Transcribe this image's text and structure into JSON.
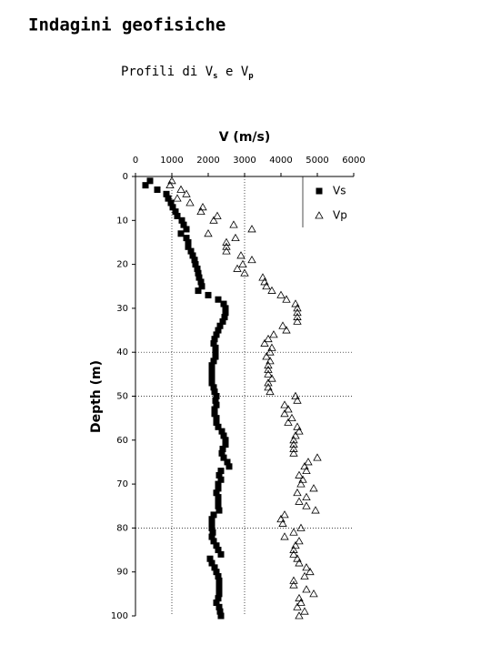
{
  "chart_data": {
    "type": "scatter",
    "title": "Indagini geofisiche",
    "subtitle": [
      "Profili di V",
      "s",
      " e V",
      "p"
    ],
    "xlabel": "V (m/s)",
    "ylabel": "Depth (m)",
    "xlim": [
      0,
      6000
    ],
    "xticks": [
      0,
      1000,
      2000,
      3000,
      4000,
      5000,
      6000
    ],
    "ylim": [
      0,
      100
    ],
    "yticks": [
      0,
      10,
      20,
      30,
      40,
      50,
      60,
      70,
      80,
      90,
      100
    ],
    "xgrid": [
      1000,
      3000
    ],
    "ygrid": [
      40,
      50,
      80
    ],
    "series": [
      {
        "name": "Vs",
        "color": "#000000",
        "marker": "square",
        "x": [
          400,
          275,
          600,
          850,
          900,
          975,
          1025,
          1100,
          1150,
          1275,
          1325,
          1400,
          1250,
          1400,
          1450,
          1450,
          1525,
          1575,
          1625,
          1650,
          1700,
          1725,
          1750,
          1800,
          1825,
          1725,
          2000,
          2275,
          2425,
          2475,
          2475,
          2450,
          2400,
          2325,
          2275,
          2225,
          2175,
          2150,
          2200,
          2200,
          2200,
          2150,
          2100,
          2100,
          2100,
          2100,
          2100,
          2150,
          2175,
          2225,
          2200,
          2225,
          2175,
          2175,
          2225,
          2225,
          2275,
          2375,
          2425,
          2475,
          2475,
          2400,
          2375,
          2425,
          2525,
          2575,
          2350,
          2300,
          2350,
          2275,
          2275,
          2225,
          2275,
          2275,
          2275,
          2300,
          2150,
          2100,
          2100,
          2100,
          2125,
          2100,
          2150,
          2225,
          2275,
          2350,
          2050,
          2100,
          2175,
          2225,
          2275,
          2300,
          2300,
          2300,
          2300,
          2275,
          2225,
          2300,
          2325,
          2350
        ],
        "y": [
          1,
          2,
          3,
          4,
          5,
          6,
          7,
          8,
          9,
          10,
          11,
          12,
          13,
          14,
          15,
          16,
          17,
          18,
          19,
          20,
          21,
          22,
          23,
          24,
          25,
          26,
          27,
          28,
          29,
          30,
          31,
          32,
          33,
          34,
          35,
          36,
          37,
          38,
          39,
          40,
          41,
          42,
          43,
          44,
          45,
          46,
          47,
          48,
          49,
          50,
          51,
          52,
          53,
          54,
          55,
          56,
          57,
          58,
          59,
          60,
          61,
          62,
          63,
          64,
          65,
          66,
          67,
          68,
          69,
          70,
          71,
          72,
          73,
          74,
          75,
          76,
          77,
          78,
          79,
          80,
          81,
          82,
          83,
          84,
          85,
          86,
          87,
          88,
          89,
          90,
          91,
          92,
          93,
          94,
          95,
          96,
          97,
          98,
          99,
          100
        ]
      },
      {
        "name": "Vp",
        "color": "#000000",
        "marker": "triangle",
        "x": [
          1000,
          950,
          1250,
          1400,
          1150,
          1500,
          1850,
          1800,
          2250,
          2150,
          2700,
          3200,
          2000,
          2750,
          2500,
          2500,
          2500,
          2900,
          3200,
          2950,
          2800,
          3000,
          3500,
          3550,
          3600,
          3750,
          4000,
          4150,
          4400,
          4450,
          4450,
          4450,
          4450,
          4050,
          4150,
          3800,
          3650,
          3550,
          3750,
          3700,
          3600,
          3700,
          3650,
          3650,
          3650,
          3750,
          3650,
          3650,
          3700,
          4400,
          4450,
          4100,
          4200,
          4100,
          4300,
          4200,
          4450,
          4500,
          4400,
          4350,
          4350,
          4350,
          4350,
          5000,
          4750,
          4650,
          4700,
          4500,
          4600,
          4550,
          4900,
          4450,
          4700,
          4500,
          4700,
          4950,
          4100,
          4000,
          4050,
          4550,
          4350,
          4100,
          4500,
          4400,
          4350,
          4350,
          4450,
          4500,
          4700,
          4800,
          4650,
          4350,
          4350,
          4700,
          4900,
          4500,
          4550,
          4450,
          4650,
          4500
        ],
        "y": [
          1,
          2,
          3,
          4,
          5,
          6,
          7,
          8,
          9,
          10,
          11,
          12,
          13,
          14,
          15,
          16,
          17,
          18,
          19,
          20,
          21,
          22,
          23,
          24,
          25,
          26,
          27,
          28,
          29,
          30,
          31,
          32,
          33,
          34,
          35,
          36,
          37,
          38,
          39,
          40,
          41,
          42,
          43,
          44,
          45,
          46,
          47,
          48,
          49,
          50,
          51,
          52,
          53,
          54,
          55,
          56,
          57,
          58,
          59,
          60,
          61,
          62,
          63,
          64,
          65,
          66,
          67,
          68,
          69,
          70,
          71,
          72,
          73,
          74,
          75,
          76,
          77,
          78,
          79,
          80,
          81,
          82,
          83,
          84,
          85,
          86,
          87,
          88,
          89,
          90,
          91,
          92,
          93,
          94,
          95,
          96,
          97,
          98,
          99,
          100
        ]
      }
    ]
  }
}
